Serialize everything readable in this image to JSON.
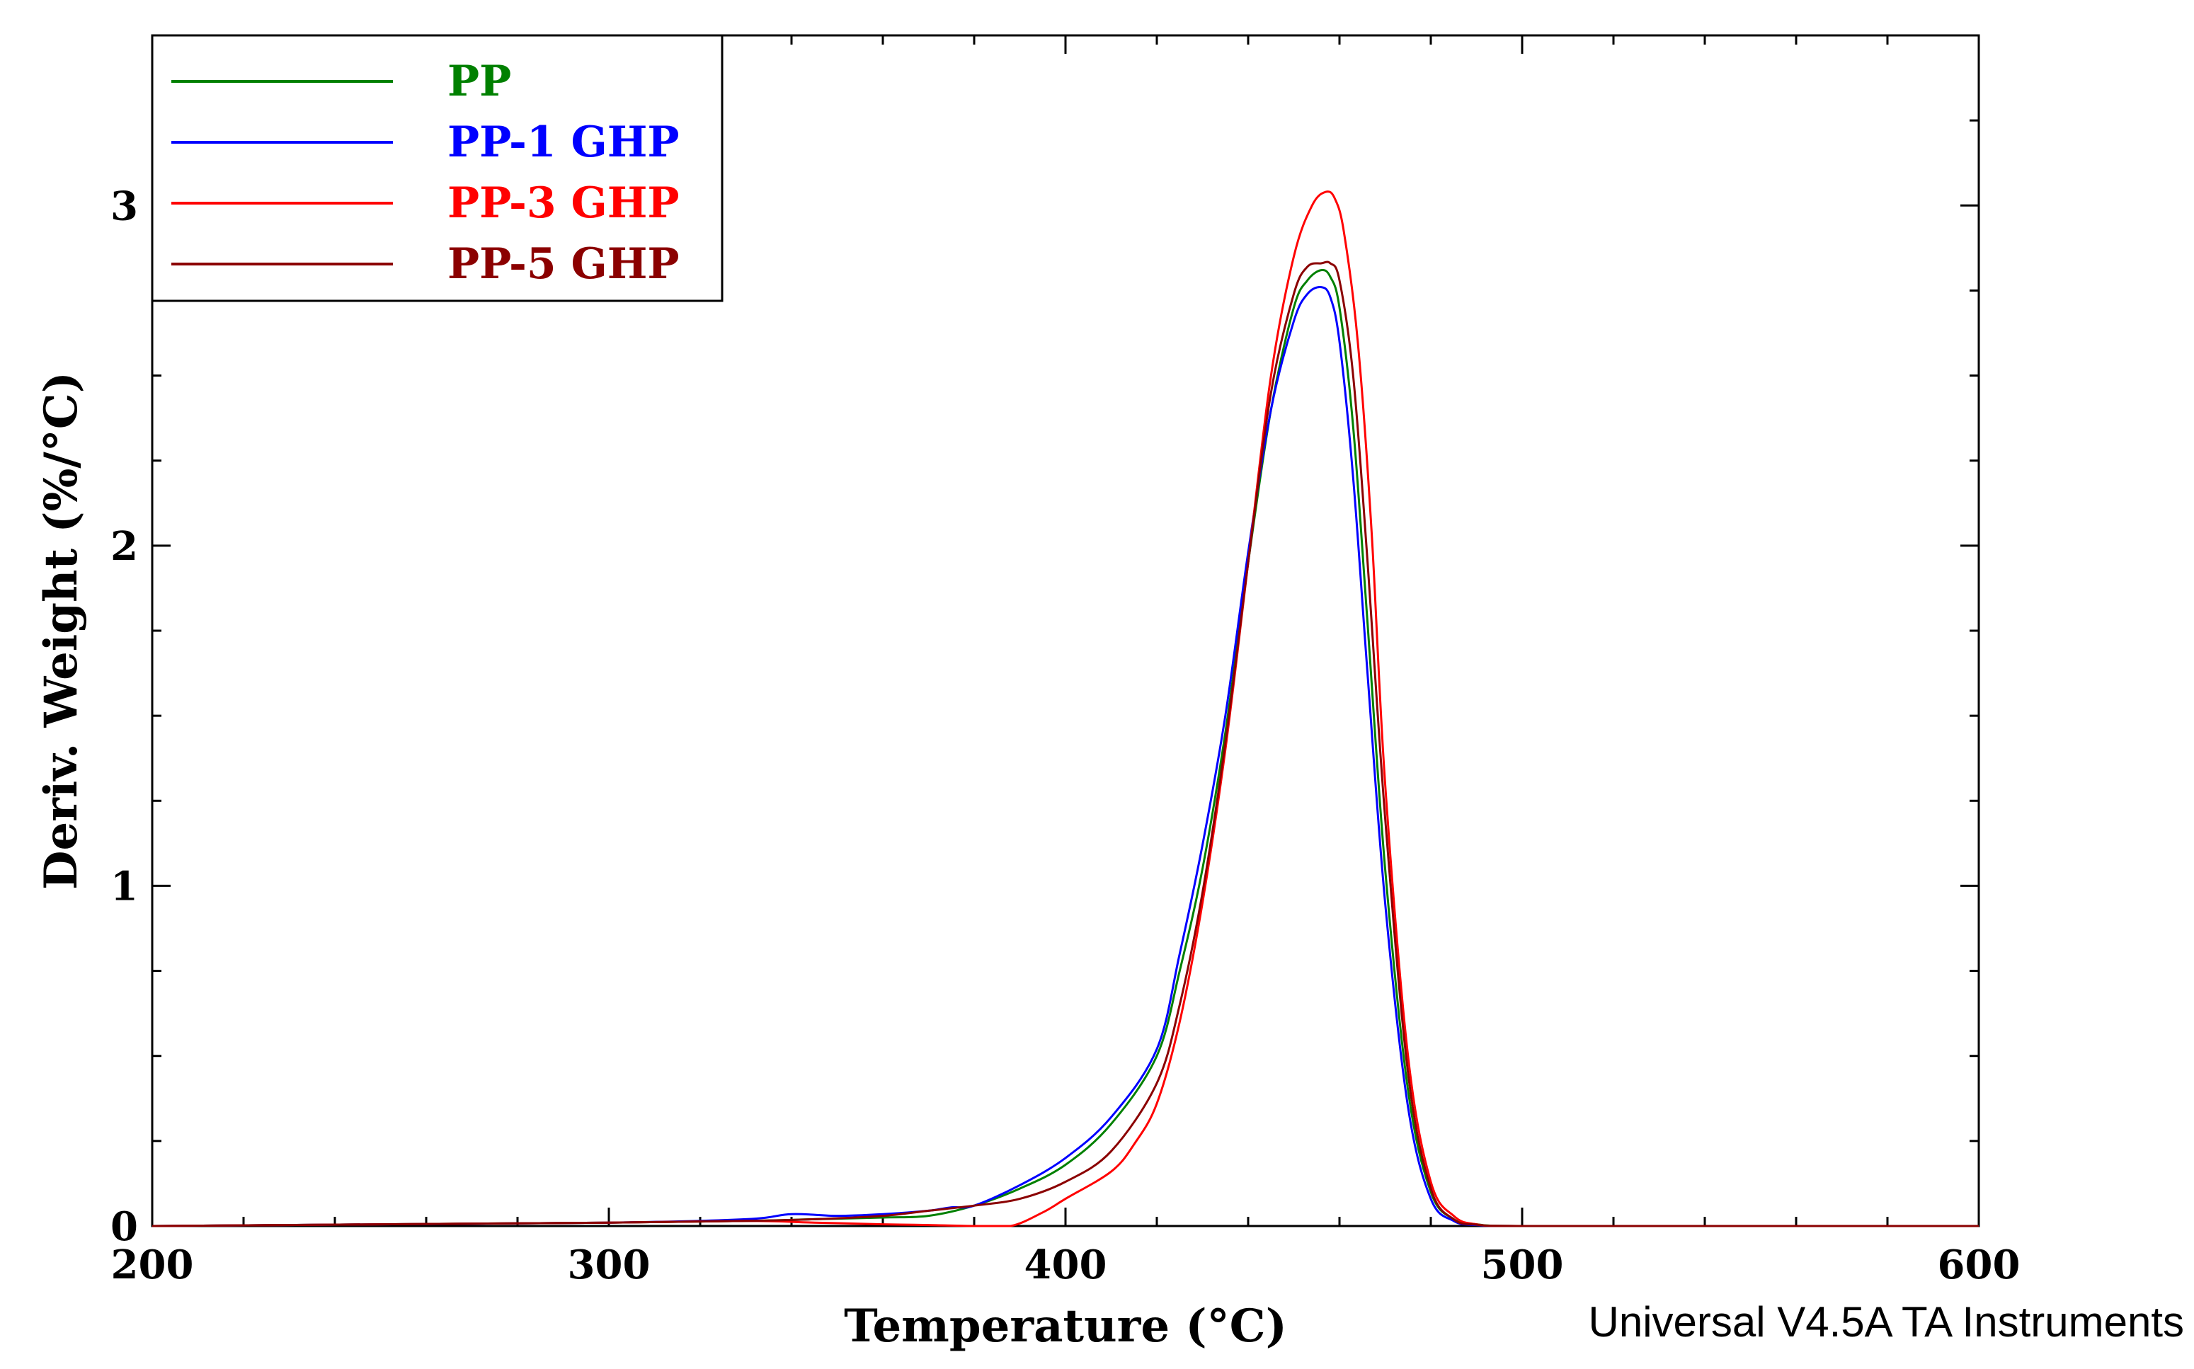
{
  "chart_data": {
    "type": "line",
    "title": "",
    "xlabel": "Temperature (°C)",
    "ylabel": "Deriv. Weight (%/°C)",
    "xlim": [
      200,
      600
    ],
    "ylim": [
      0,
      3.5
    ],
    "xticks": [
      200,
      300,
      400,
      500,
      600
    ],
    "yticks": [
      0,
      1,
      2,
      3
    ],
    "grid": false,
    "legend_position": "top-left",
    "footer": "Universal V4.5A TA Instruments",
    "series": [
      {
        "name": "PP",
        "color": "#008000",
        "x": [
          200,
          250,
          300,
          330,
          345,
          360,
          370,
          380,
          390,
          400,
          410,
          420,
          425,
          430,
          435,
          440,
          445,
          450,
          453,
          456,
          458,
          460,
          463,
          466,
          470,
          475,
          480,
          485,
          490,
          500,
          550,
          600
        ],
        "y": [
          0,
          0.005,
          0.01,
          0.015,
          0.02,
          0.025,
          0.03,
          0.06,
          0.11,
          0.18,
          0.3,
          0.5,
          0.75,
          1.05,
          1.45,
          1.95,
          2.4,
          2.7,
          2.78,
          2.81,
          2.79,
          2.7,
          2.35,
          1.8,
          1.05,
          0.4,
          0.1,
          0.02,
          0.005,
          0,
          0,
          0
        ]
      },
      {
        "name": "PP-1 GHP",
        "color": "#0000ff",
        "x": [
          200,
          250,
          300,
          330,
          340,
          350,
          360,
          370,
          375,
          380,
          390,
          400,
          410,
          420,
          425,
          430,
          435,
          440,
          445,
          450,
          453,
          456,
          458,
          460,
          463,
          466,
          470,
          475,
          480,
          485,
          490,
          500,
          550,
          600
        ],
        "y": [
          0,
          0.005,
          0.01,
          0.02,
          0.035,
          0.03,
          0.035,
          0.045,
          0.055,
          0.06,
          0.12,
          0.2,
          0.32,
          0.52,
          0.8,
          1.12,
          1.5,
          1.98,
          2.4,
          2.66,
          2.74,
          2.76,
          2.73,
          2.6,
          2.2,
          1.65,
          0.95,
          0.35,
          0.08,
          0.015,
          0.003,
          0,
          0,
          0
        ]
      },
      {
        "name": "PP-3 GHP",
        "color": "#ff0000",
        "x": [
          200,
          250,
          300,
          330,
          345,
          360,
          370,
          380,
          388,
          395,
          400,
          410,
          415,
          420,
          425,
          430,
          435,
          440,
          445,
          450,
          454,
          457,
          459,
          461,
          464,
          467,
          470,
          475,
          480,
          485,
          490,
          500,
          550,
          600
        ],
        "y": [
          0,
          0.005,
          0.01,
          0.015,
          0.01,
          0.005,
          0.003,
          0.0,
          0.0,
          0.04,
          0.08,
          0.16,
          0.24,
          0.36,
          0.6,
          0.95,
          1.4,
          1.95,
          2.5,
          2.85,
          3.0,
          3.04,
          3.02,
          2.92,
          2.6,
          2.05,
          1.3,
          0.5,
          0.13,
          0.03,
          0.005,
          0,
          0,
          0
        ]
      },
      {
        "name": "PP-5 GHP",
        "color": "#8b0000",
        "x": [
          200,
          250,
          300,
          330,
          345,
          360,
          370,
          380,
          390,
          400,
          410,
          420,
          425,
          430,
          435,
          440,
          445,
          450,
          453,
          456,
          458,
          460,
          463,
          466,
          470,
          475,
          480,
          485,
          490,
          500,
          550,
          600
        ],
        "y": [
          0,
          0.005,
          0.01,
          0.015,
          0.02,
          0.03,
          0.045,
          0.06,
          0.08,
          0.13,
          0.22,
          0.42,
          0.65,
          0.98,
          1.42,
          1.95,
          2.45,
          2.74,
          2.82,
          2.83,
          2.83,
          2.78,
          2.5,
          1.98,
          1.2,
          0.45,
          0.11,
          0.02,
          0.004,
          0,
          0,
          0
        ]
      }
    ]
  }
}
